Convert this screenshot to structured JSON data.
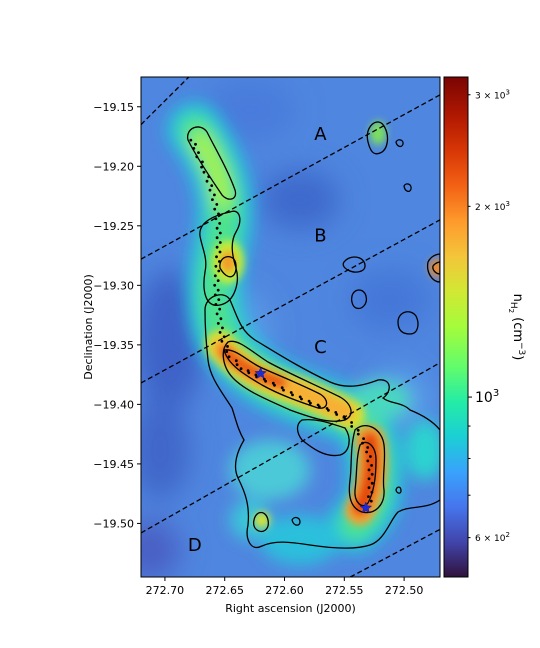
{
  "chart_data": {
    "type": "heatmap",
    "title": "",
    "xlabel": "Right ascension (J2000)",
    "ylabel": "Declination (J2000)",
    "xlim": [
      272.72,
      272.47
    ],
    "ylim": [
      -19.545,
      -19.125
    ],
    "x_ticks": [
      {
        "value": 272.7,
        "label": "272.70"
      },
      {
        "value": 272.65,
        "label": "272.65"
      },
      {
        "value": 272.6,
        "label": "272.60"
      },
      {
        "value": 272.55,
        "label": "272.55"
      },
      {
        "value": 272.5,
        "label": "272.50"
      }
    ],
    "y_ticks": [
      {
        "value": -19.15,
        "label": "−19.15"
      },
      {
        "value": -19.2,
        "label": "−19.20"
      },
      {
        "value": -19.25,
        "label": "−19.25"
      },
      {
        "value": -19.3,
        "label": "−19.30"
      },
      {
        "value": -19.35,
        "label": "−19.35"
      },
      {
        "value": -19.4,
        "label": "−19.40"
      },
      {
        "value": -19.45,
        "label": "−19.45"
      },
      {
        "value": -19.5,
        "label": "−19.50"
      }
    ],
    "colorbar": {
      "label": "n_H2 (cm^-3)",
      "label_main": "n",
      "label_sub": "H",
      "label_subsub": "2",
      "label_units": "(cm",
      "label_exp": "−3",
      "label_close": ")",
      "scale": "log",
      "range": [
        520,
        3200
      ],
      "colormap": "turbo",
      "ticks": [
        {
          "value": 600,
          "base": "6 × 10",
          "exp": "2"
        },
        {
          "value": 1000,
          "base": "10",
          "exp": "3"
        },
        {
          "value": 2000,
          "base": "2 × 10",
          "exp": "3"
        },
        {
          "value": 3000,
          "base": "3 × 10",
          "exp": "3"
        }
      ]
    },
    "density_peaks": [
      {
        "ra": 272.675,
        "dec": -19.19,
        "value": 1300
      },
      {
        "ra": 272.662,
        "dec": -19.235,
        "value": 1150
      },
      {
        "ra": 272.652,
        "dec": -19.29,
        "value": 1700
      },
      {
        "ra": 272.62,
        "dec": -19.373,
        "value": 2600
      },
      {
        "ra": 272.59,
        "dec": -19.395,
        "value": 2000
      },
      {
        "ra": 272.565,
        "dec": -19.41,
        "value": 1700
      },
      {
        "ra": 272.53,
        "dec": -19.46,
        "value": 2700
      },
      {
        "ra": 272.663,
        "dec": -19.365,
        "value": 1400
      },
      {
        "ra": 272.475,
        "dec": -19.285,
        "value": 2000
      }
    ],
    "filament_spine": [
      [
        272.677,
        -19.178
      ],
      [
        272.672,
        -19.192
      ],
      [
        272.666,
        -19.205
      ],
      [
        272.661,
        -19.22
      ],
      [
        272.657,
        -19.236
      ],
      [
        272.655,
        -19.252
      ],
      [
        272.655,
        -19.268
      ],
      [
        272.656,
        -19.284
      ],
      [
        272.657,
        -19.3
      ],
      [
        272.656,
        -19.316
      ],
      [
        272.654,
        -19.332
      ],
      [
        272.651,
        -19.347
      ],
      [
        272.645,
        -19.36
      ],
      [
        272.635,
        -19.37
      ],
      [
        272.622,
        -19.377
      ],
      [
        272.607,
        -19.384
      ],
      [
        272.592,
        -19.392
      ],
      [
        272.577,
        -19.399
      ],
      [
        272.562,
        -19.405
      ],
      [
        272.548,
        -19.412
      ],
      [
        272.537,
        -19.425
      ],
      [
        272.53,
        -19.44
      ],
      [
        272.528,
        -19.455
      ],
      [
        272.528,
        -19.47
      ],
      [
        272.529,
        -19.485
      ]
    ],
    "stars": [
      {
        "ra": 272.62,
        "dec": -19.374
      },
      {
        "ra": 272.532,
        "dec": -19.487
      }
    ],
    "stripe_boundaries": [
      {
        "ra1": 272.72,
        "dec1": -19.165,
        "ra2": 272.68,
        "dec2": -19.125
      },
      {
        "ra1": 272.72,
        "dec1": -19.278,
        "ra2": 272.47,
        "dec2": -19.14
      },
      {
        "ra1": 272.72,
        "dec1": -19.382,
        "ra2": 272.47,
        "dec2": -19.245
      },
      {
        "ra1": 272.72,
        "dec1": -19.508,
        "ra2": 272.47,
        "dec2": -19.365
      },
      {
        "ra1": 272.545,
        "dec1": -19.545,
        "ra2": 272.47,
        "dec2": -19.505
      }
    ],
    "region_labels": [
      {
        "name": "A",
        "ra": 272.57,
        "dec": -19.173
      },
      {
        "name": "B",
        "ra": 272.57,
        "dec": -19.258
      },
      {
        "name": "C",
        "ra": 272.57,
        "dec": -19.352
      },
      {
        "name": "D",
        "ra": 272.675,
        "dec": -19.518
      }
    ],
    "grid": false,
    "legend": "none"
  }
}
